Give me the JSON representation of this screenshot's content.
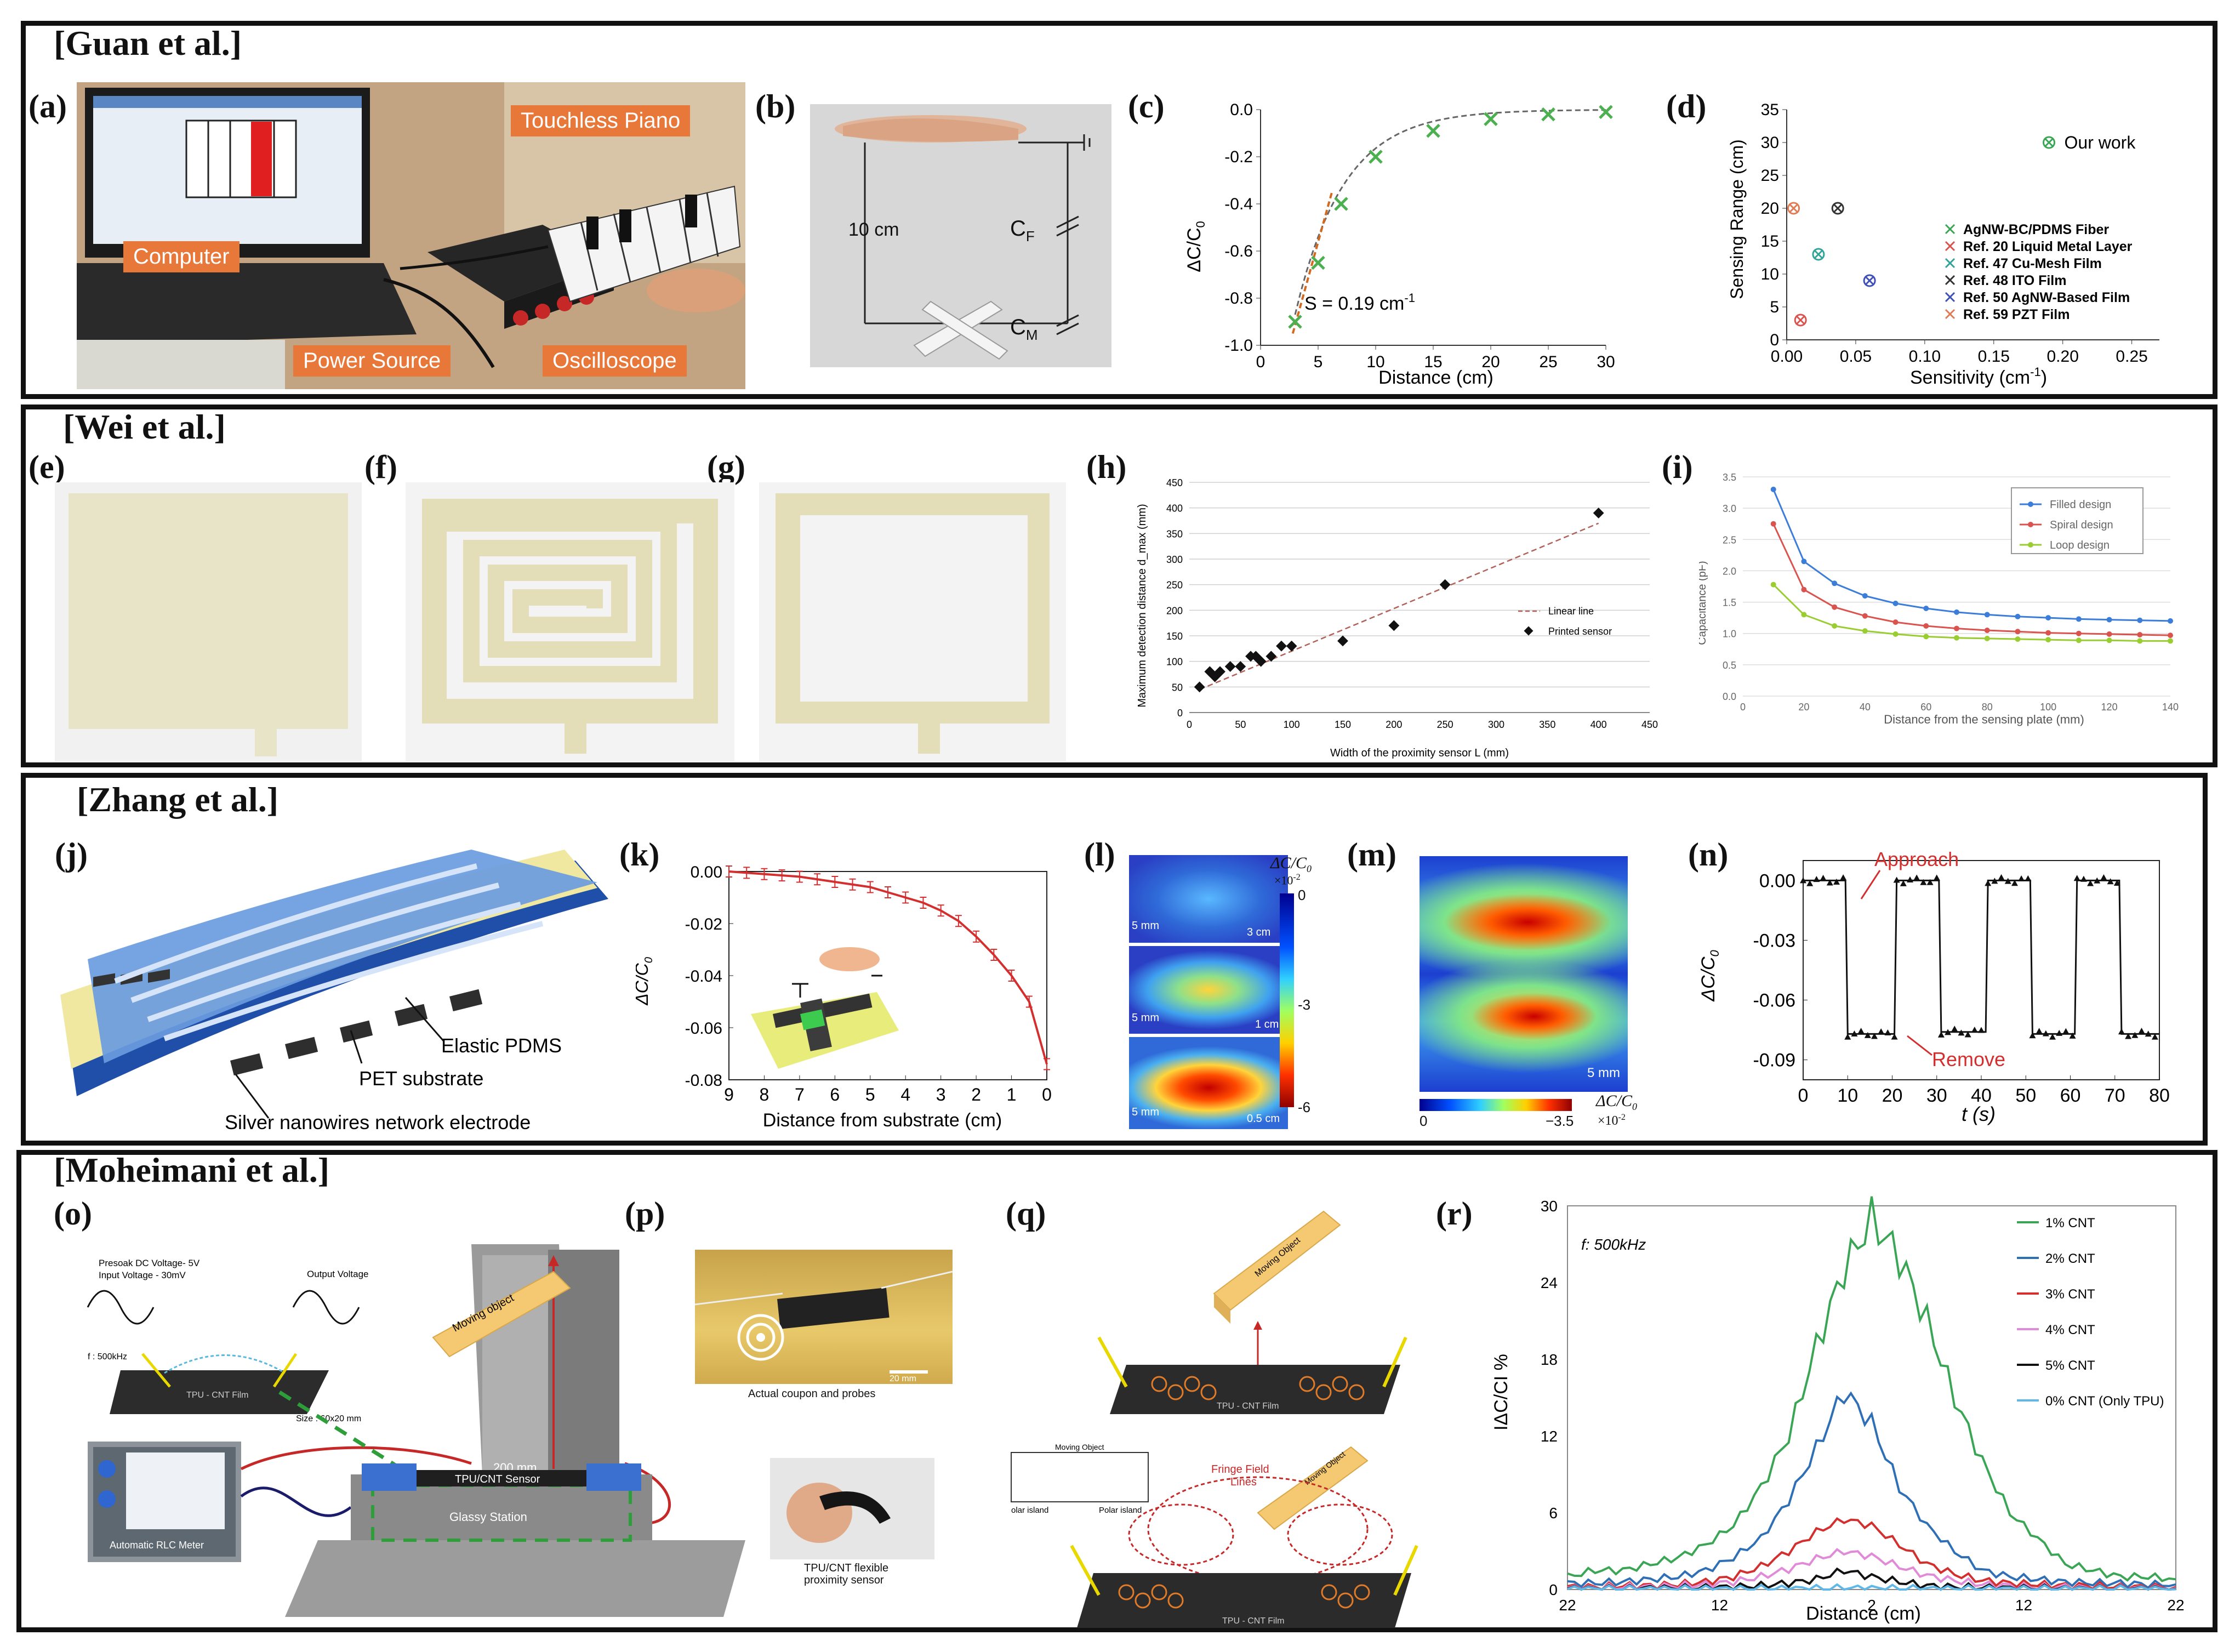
{
  "groups": {
    "guan": "[Guan et al.]",
    "wei": "[Wei et al.]",
    "zhang": "[Zhang et al.]",
    "moheimani": "[Moheimani et al.]"
  },
  "panels": {
    "a": "(a)",
    "b": "(b)",
    "c": "(c)",
    "d": "(d)",
    "e": "(e)",
    "f": "(f)",
    "g": "(g)",
    "h": "(h)",
    "i": "(i)",
    "j": "(j)",
    "k": "(k)",
    "l": "(l)",
    "m": "(m)",
    "n": "(n)",
    "o": "(o)",
    "p": "(p)",
    "q": "(q)",
    "r": "(r)"
  },
  "photo_a": {
    "touchless_piano": "Touchless Piano",
    "computer": "Computer",
    "power_source": "Power Source",
    "oscilloscope": "Oscilloscope"
  },
  "schematic_b": {
    "distance": "10 cm",
    "cf": "C",
    "cf_sub": "F",
    "cm": "C",
    "cm_sub": "M"
  },
  "colors": {
    "green_series": "#4caf50",
    "orange_fit": "#d2691e",
    "red_curve": "#d32f2f",
    "blue_filled": "#3b7dd8",
    "red_spiral": "#d9534f",
    "green_loop": "#9acd32",
    "orange_label": "#e8783a",
    "yellow_object": "#f5c971",
    "blue_panel": "#4a78c8"
  },
  "chart_data": [
    {
      "id": "c",
      "type": "scatter",
      "x": [
        3,
        5,
        7,
        10,
        15,
        20,
        25,
        30
      ],
      "y": [
        -0.9,
        -0.65,
        -0.4,
        -0.2,
        -0.09,
        -0.04,
        -0.02,
        -0.01
      ],
      "xlabel": "Distance (cm)",
      "ylabel": "ΔC/C0",
      "ylabel_main": "ΔC/C",
      "ylabel_sub": "0",
      "xlim": [
        0,
        30
      ],
      "ylim": [
        -1.0,
        0.0
      ],
      "xticks": [
        "0",
        "5",
        "10",
        "15",
        "20",
        "25",
        "30"
      ],
      "yticks": [
        "0.0",
        "-0.2",
        "-0.4",
        "-0.6",
        "-0.8",
        "-1.0"
      ],
      "annotation": "S = 0.19 cm",
      "annotation_sup": "-1"
    },
    {
      "id": "d",
      "type": "scatter",
      "xlabel": "Sensitivity (cm",
      "xlabel_sup": "-1",
      "xlabel_end": ")",
      "ylabel": "Sensing Range (cm)",
      "xlim": [
        0,
        0.27
      ],
      "ylim": [
        0,
        35
      ],
      "xticks": [
        "0.00",
        "0.05",
        "0.10",
        "0.15",
        "0.20",
        "0.25"
      ],
      "yticks": [
        "0",
        "5",
        "10",
        "15",
        "20",
        "25",
        "30",
        "35"
      ],
      "points": [
        {
          "label": "Our work",
          "x": 0.19,
          "y": 30,
          "color": "#3aa655"
        },
        {
          "label": "Ref. 20 Liquid Metal Layer",
          "x": 0.01,
          "y": 3,
          "color": "#d9534f"
        },
        {
          "label": "Ref. 47 Cu-Mesh Film",
          "x": 0.023,
          "y": 13,
          "color": "#31a39a"
        },
        {
          "label": "Ref. 48 ITO Film",
          "x": 0.037,
          "y": 20,
          "color": "#333333"
        },
        {
          "label": "Ref. 50 AgNW-Based Film",
          "x": 0.06,
          "y": 9,
          "color": "#3f51b5"
        },
        {
          "label": "Ref. 59 PZT Film",
          "x": 0.005,
          "y": 20,
          "color": "#e07b54"
        }
      ],
      "legend": [
        "AgNW-BC/PDMS Fiber",
        "Ref. 20 Liquid Metal Layer",
        "Ref. 47 Cu-Mesh Film",
        "Ref. 48 ITO Film",
        "Ref. 50 AgNW-Based Film",
        "Ref. 59 PZT Film"
      ]
    },
    {
      "id": "h",
      "type": "scatter",
      "x": [
        10,
        20,
        25,
        30,
        40,
        50,
        60,
        65,
        70,
        80,
        90,
        100,
        150,
        200,
        250,
        400
      ],
      "y": [
        50,
        80,
        70,
        80,
        90,
        90,
        110,
        110,
        100,
        110,
        130,
        130,
        140,
        170,
        250,
        390
      ],
      "fit": [
        [
          10,
          45
        ],
        [
          400,
          370
        ]
      ],
      "xlabel": "Width of the proximity sensor L (mm)",
      "ylabel": "Maximum detection distance d_max (mm)",
      "xlim": [
        0,
        450
      ],
      "ylim": [
        0,
        450
      ],
      "xticks": [
        "0",
        "50",
        "100",
        "150",
        "200",
        "250",
        "300",
        "350",
        "400",
        "450"
      ],
      "yticks": [
        "0",
        "50",
        "100",
        "150",
        "200",
        "250",
        "300",
        "350",
        "400",
        "450"
      ],
      "legend": [
        "Linear line",
        "Printed sensor"
      ]
    },
    {
      "id": "i",
      "type": "line",
      "x": [
        10,
        20,
        30,
        40,
        50,
        60,
        70,
        80,
        90,
        100,
        110,
        120,
        130,
        140
      ],
      "series": [
        {
          "name": "Filled design",
          "values": [
            3.3,
            2.15,
            1.8,
            1.6,
            1.48,
            1.4,
            1.34,
            1.3,
            1.27,
            1.25,
            1.23,
            1.22,
            1.21,
            1.2
          ],
          "color": "#3b7dd8"
        },
        {
          "name": "Spiral design",
          "values": [
            2.75,
            1.7,
            1.42,
            1.28,
            1.18,
            1.12,
            1.08,
            1.05,
            1.03,
            1.01,
            1.0,
            0.99,
            0.98,
            0.97
          ],
          "color": "#d9534f"
        },
        {
          "name": "Loop design",
          "values": [
            1.78,
            1.3,
            1.12,
            1.04,
            0.99,
            0.95,
            0.93,
            0.92,
            0.91,
            0.9,
            0.89,
            0.89,
            0.88,
            0.88
          ],
          "color": "#9acd32"
        }
      ],
      "xlabel": "Distance from the sensing plate (mm)",
      "ylabel": "Capacitance (pF)",
      "xlim": [
        0,
        140
      ],
      "ylim": [
        0,
        3.5
      ],
      "xticks": [
        "0",
        "20",
        "40",
        "60",
        "80",
        "100",
        "120",
        "140"
      ],
      "yticks": [
        "0.0",
        "0.5",
        "1.0",
        "1.5",
        "2.0",
        "2.5",
        "3.0",
        "3.5"
      ]
    },
    {
      "id": "k",
      "type": "line",
      "x": [
        9,
        8.5,
        8,
        7.5,
        7,
        6.5,
        6,
        5.5,
        5,
        4.5,
        4,
        3.5,
        3,
        2.5,
        2,
        1.5,
        1,
        0.5,
        0
      ],
      "y": [
        0.0,
        -0.0005,
        -0.001,
        -0.0015,
        -0.002,
        -0.003,
        -0.004,
        -0.005,
        -0.006,
        -0.008,
        -0.01,
        -0.012,
        -0.015,
        -0.019,
        -0.025,
        -0.032,
        -0.04,
        -0.05,
        -0.074
      ],
      "xlabel": "Distance from substrate (cm)",
      "ylabel": "ΔC/C0",
      "ylabel_main": "ΔC/C",
      "ylabel_sub": "0",
      "xlim": [
        9,
        0
      ],
      "ylim": [
        -0.08,
        0.0
      ],
      "xticks": [
        "9",
        "8",
        "7",
        "6",
        "5",
        "4",
        "3",
        "2",
        "1",
        "0"
      ],
      "yticks": [
        "0.00",
        "-0.02",
        "-0.04",
        "-0.06",
        "-0.08"
      ]
    },
    {
      "id": "n",
      "type": "line",
      "xlabel": "t (s)",
      "ylabel": "ΔC/C0",
      "ylabel_main": "ΔC/C",
      "ylabel_sub": "0",
      "xlim": [
        0,
        80
      ],
      "ylim": [
        -0.1,
        0.01
      ],
      "xticks": [
        "0",
        "10",
        "20",
        "30",
        "40",
        "50",
        "60",
        "70",
        "80"
      ],
      "yticks": [
        "0.00",
        "-0.03",
        "-0.06",
        "-0.09"
      ],
      "segments": [
        {
          "t0": 0,
          "t1": 9.5,
          "value": 0.0
        },
        {
          "t0": 10,
          "t1": 20.5,
          "value": -0.077
        },
        {
          "t0": 21,
          "t1": 30.5,
          "value": 0.0
        },
        {
          "t0": 31,
          "t1": 41,
          "value": -0.076
        },
        {
          "t0": 41.5,
          "t1": 51,
          "value": 0.0
        },
        {
          "t0": 51.5,
          "t1": 61,
          "value": -0.077
        },
        {
          "t0": 61.5,
          "t1": 71,
          "value": 0.0
        },
        {
          "t0": 71.5,
          "t1": 80,
          "value": -0.077
        }
      ],
      "annotations": [
        "Approach",
        "Remove"
      ]
    },
    {
      "id": "r",
      "type": "line",
      "x": [
        22,
        20,
        18,
        16,
        14,
        12,
        10,
        8,
        6,
        4,
        2,
        0,
        2,
        4,
        6,
        8,
        10,
        12,
        14,
        16,
        18,
        20,
        22
      ],
      "series": [
        {
          "name": "1% CNT",
          "values": [
            1,
            1.5,
            1.5,
            2,
            2.5,
            3.5,
            5,
            8,
            12,
            19,
            25,
            29,
            26,
            21,
            15,
            10,
            6,
            4,
            2,
            1.5,
            1,
            1,
            0.8
          ],
          "color": "#3aa655"
        },
        {
          "name": "2% CNT",
          "values": [
            0.5,
            0.5,
            0.6,
            0.8,
            1,
            1.5,
            2.5,
            4,
            7,
            11,
            15.5,
            13,
            8,
            5,
            3,
            1.5,
            1,
            0.8,
            0.6,
            0.5,
            0.5,
            0.4,
            0.4
          ],
          "color": "#2f6fb5"
        },
        {
          "name": "3% CNT",
          "values": [
            0.2,
            0.2,
            0.3,
            0.3,
            0.4,
            0.6,
            1,
            1.8,
            3,
            4.5,
            5.5,
            5,
            3.5,
            2,
            1.2,
            0.7,
            0.5,
            0.4,
            0.3,
            0.3,
            0.2,
            0.2,
            0.2
          ],
          "color": "#d32f2f"
        },
        {
          "name": "4% CNT",
          "values": [
            0.1,
            0.1,
            0.2,
            0.2,
            0.3,
            0.4,
            0.6,
            1,
            1.6,
            2.4,
            3,
            2.6,
            1.8,
            1.1,
            0.7,
            0.4,
            0.3,
            0.2,
            0.2,
            0.1,
            0.1,
            0.1,
            0.1
          ],
          "color": "#e08ad8"
        },
        {
          "name": "5% CNT",
          "values": [
            0.05,
            0.05,
            0.05,
            0.1,
            0.1,
            0.15,
            0.2,
            0.3,
            0.5,
            0.8,
            1.5,
            1,
            0.6,
            0.3,
            0.2,
            0.15,
            0.1,
            0.1,
            0.05,
            0.05,
            0.05,
            0.05,
            0.05
          ],
          "color": "#111111"
        },
        {
          "name": "0% CNT (Only TPU)",
          "values": [
            0.02,
            0.02,
            0.02,
            0.02,
            0.03,
            0.03,
            0.04,
            0.05,
            0.06,
            0.08,
            0.1,
            0.09,
            0.07,
            0.05,
            0.04,
            0.03,
            0.03,
            0.02,
            0.02,
            0.02,
            0.02,
            0.02,
            0.02
          ],
          "color": "#5fb8e8"
        }
      ],
      "xlabel": "Distance (cm)",
      "ylabel": "IΔC/CI %",
      "annotation": "f: 500kHz",
      "xlim": [
        0,
        44
      ],
      "ylim": [
        0,
        30
      ],
      "xticks": [
        "22",
        "12",
        "2",
        "12",
        "22"
      ],
      "yticks": [
        "0",
        "6",
        "12",
        "18",
        "24",
        "30"
      ]
    }
  ],
  "panel_j": {
    "elastic": "Elastic PDMS",
    "pet": "PET substrate",
    "silver": "Silver nanowires network electrode"
  },
  "panel_l": {
    "colorbar_label": "ΔC/C",
    "colorbar_sub": "0",
    "colorbar_scale": "×10",
    "colorbar_exp": "-2",
    "ticks": [
      "0",
      "-3",
      "-6"
    ],
    "scale1": "5 mm",
    "dist1": "3 cm",
    "scale2": "5 mm",
    "dist2": "1 cm",
    "scale3": "5 mm",
    "dist3": "0.5 cm"
  },
  "panel_m": {
    "scale": "5 mm",
    "ticks": [
      "0",
      "−3.5"
    ],
    "label": "ΔC/C",
    "label_sub": "0",
    "label_scale": "×10",
    "label_exp": "-2"
  },
  "panel_o": {
    "presoak": "Presoak DC Voltage- 5V",
    "input": "Input Voltage - 30mV",
    "output": "Output Voltage",
    "freq": "f : 500kHz",
    "film": "TPU - CNT Film",
    "size": "Size : 60x20 mm",
    "meter": "Automatic RLC Meter",
    "moving": "Moving object",
    "height": "200 mm",
    "sensor": "TPU/CNT Sensor",
    "station": "Glassy Station"
  },
  "panel_p": {
    "coupon": "Actual coupon and probes",
    "scale": "20 mm",
    "flex1": "TPU/CNT flexible",
    "flex2": "proximity sensor"
  },
  "panel_q": {
    "moving": "Moving Object",
    "film1": "TPU - CNT Film",
    "film2": "TPU - CNT Film",
    "fringe1": "Fringe Field",
    "fringe2": "Lines",
    "island1": "olar island",
    "island2": "Polar island",
    "moving_obj2": "Moving Object",
    "moving_obj3": "Moving Object"
  }
}
